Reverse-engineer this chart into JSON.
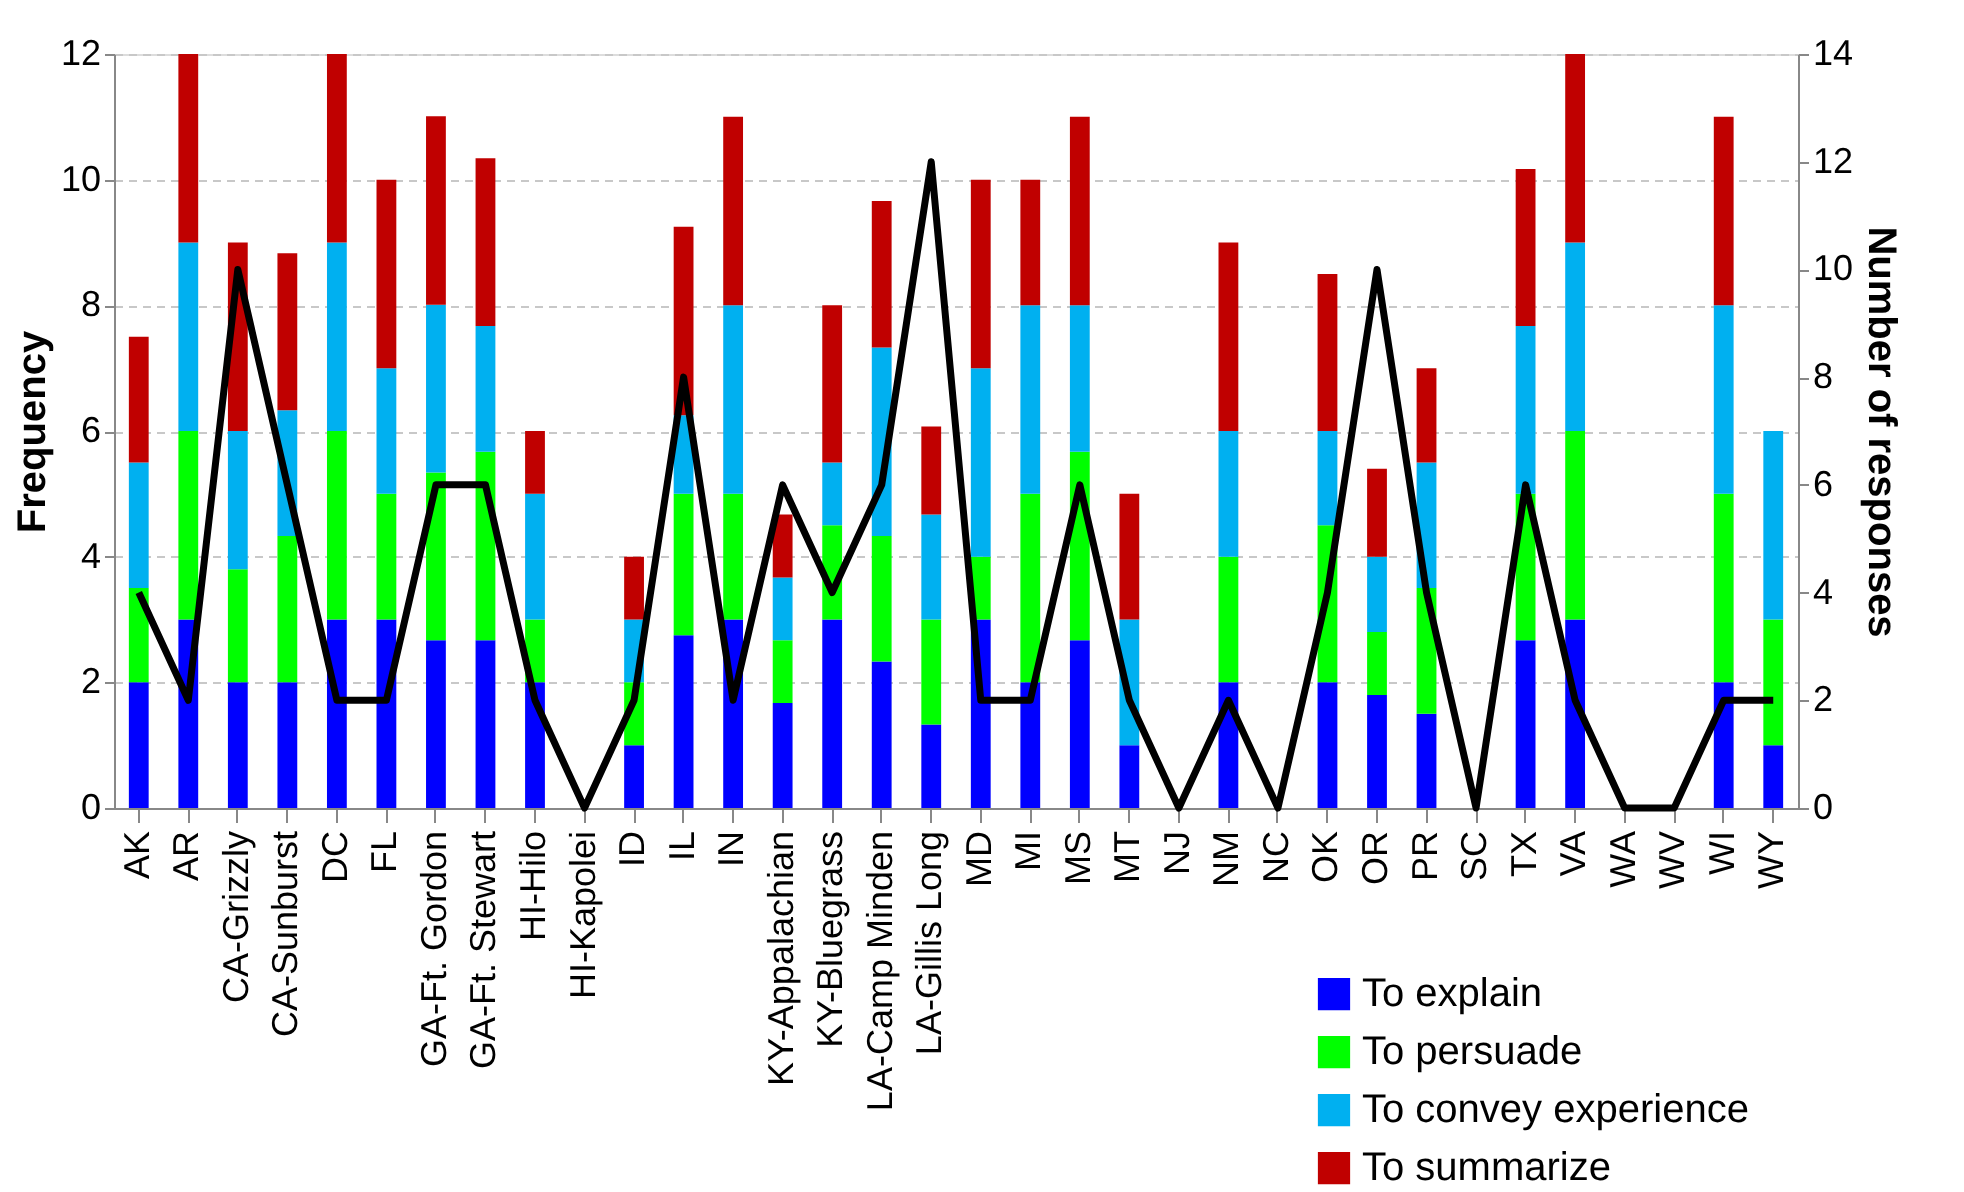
{
  "chart_data": {
    "type": "bar",
    "stacked": true,
    "ylabel": "Frequency",
    "y2label": "Number of responses",
    "categories": [
      "AK",
      "AR",
      "CA-Grizzly",
      "CA-Sunburst",
      "DC",
      "FL",
      "GA-Ft. Gordon",
      "GA-Ft. Stewart",
      "HI-Hilo",
      "HI-Kapolei",
      "ID",
      "IL",
      "IN",
      "KY-Appalachian",
      "KY-Bluegrass",
      "LA-Camp Minden",
      "LA-Gillis Long",
      "MD",
      "MI",
      "MS",
      "MT",
      "NJ",
      "NM",
      "NC",
      "OK",
      "OR",
      "PR",
      "SC",
      "TX",
      "VA",
      "WA",
      "WV",
      "WI",
      "WY"
    ],
    "series": [
      {
        "name": "To explain",
        "color": "#0000ff",
        "values": [
          2,
          3,
          2,
          2,
          3,
          3,
          2.67,
          2.67,
          2,
          0,
          1,
          2.75,
          3,
          1.67,
          3,
          2.33,
          1.33,
          3,
          2,
          2.67,
          1,
          0,
          2,
          0,
          2,
          1.8,
          1.5,
          0,
          2.67,
          3,
          0,
          0,
          2,
          1
        ]
      },
      {
        "name": "To persuade",
        "color": "#00ff00",
        "values": [
          1.5,
          3,
          1.8,
          2.33,
          3,
          2,
          2.67,
          3,
          1,
          0,
          1,
          2.25,
          2,
          1,
          1.5,
          2,
          1.67,
          1,
          3,
          3,
          0,
          0,
          2,
          0,
          2.5,
          1,
          2,
          0,
          2.33,
          3,
          0,
          0,
          3,
          2
        ]
      },
      {
        "name": "To convey experience",
        "color": "#00b0f0",
        "values": [
          2,
          3,
          2.2,
          2,
          3,
          2,
          2.67,
          2,
          2,
          0,
          1,
          1.25,
          3,
          1,
          1,
          3,
          1.67,
          3,
          3,
          2.33,
          2,
          0,
          2,
          0,
          1.5,
          1.2,
          2,
          0,
          2.67,
          3,
          0,
          0,
          3,
          3
        ]
      },
      {
        "name": "To summarize",
        "color": "#c00000",
        "values": [
          2,
          3,
          3,
          2.5,
          3,
          3,
          3,
          2.67,
          1,
          0,
          1,
          3,
          3,
          1,
          2.5,
          2.33,
          1.4,
          3,
          2,
          3,
          2,
          0,
          3,
          0,
          2.5,
          1.4,
          1.5,
          0,
          2.5,
          3,
          0,
          0,
          3,
          0
        ]
      },
      {
        "type": "line",
        "axis": "y2",
        "color": "#000000",
        "values": [
          4,
          2,
          10,
          6,
          2,
          2,
          6,
          6,
          2,
          0,
          2,
          8,
          2,
          6,
          4,
          6,
          12,
          2,
          2,
          6,
          2,
          0,
          2,
          0,
          4,
          10,
          4,
          0,
          6,
          2,
          0,
          0,
          2,
          2
        ]
      }
    ],
    "ylim": [
      0,
      12
    ],
    "yticks": [
      0,
      2,
      4,
      6,
      8,
      10,
      12
    ],
    "y2lim": [
      0,
      14
    ],
    "y2ticks": [
      0,
      2,
      4,
      6,
      8,
      10,
      12,
      14
    ],
    "grid": "y",
    "legend": "bottom right"
  }
}
